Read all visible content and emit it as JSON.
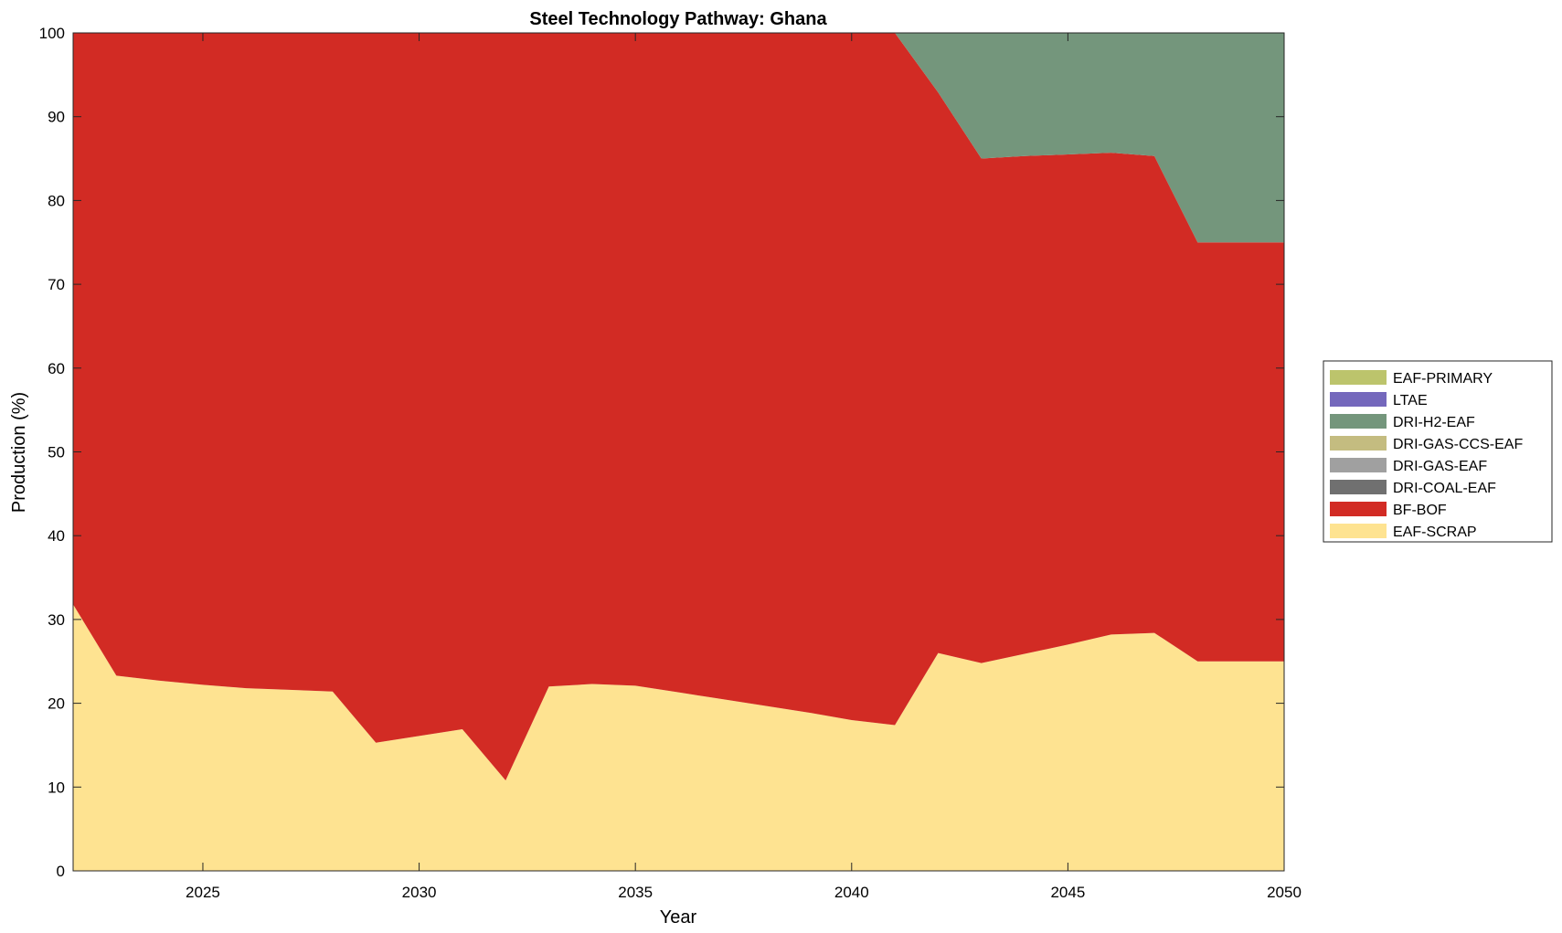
{
  "chart_data": {
    "type": "area",
    "stacked": true,
    "title": "Steel Technology Pathway: Ghana",
    "xlabel": "Year",
    "ylabel": "Production (%)",
    "xlim": [
      2022,
      2050
    ],
    "ylim": [
      0,
      100
    ],
    "xticks": [
      2025,
      2030,
      2035,
      2040,
      2045,
      2050
    ],
    "yticks": [
      0,
      10,
      20,
      30,
      40,
      50,
      60,
      70,
      80,
      90,
      100
    ],
    "grid": false,
    "legend_position": "right",
    "x": [
      2022,
      2023,
      2024,
      2025,
      2026,
      2027,
      2028,
      2029,
      2030,
      2031,
      2032,
      2033,
      2034,
      2035,
      2036,
      2037,
      2038,
      2039,
      2040,
      2041,
      2042,
      2043,
      2044,
      2045,
      2046,
      2047,
      2048,
      2049,
      2050
    ],
    "series": [
      {
        "name": "EAF-SCRAP",
        "color": "#FEE391",
        "values": [
          31.8,
          23.3,
          22.7,
          22.2,
          21.8,
          21.6,
          21.4,
          15.3,
          16.1,
          16.9,
          10.8,
          22.0,
          22.3,
          22.1,
          21.3,
          20.5,
          19.7,
          18.9,
          18.0,
          17.4,
          26.0,
          24.8,
          25.9,
          27.0,
          28.2,
          28.4,
          25.0,
          25.0,
          25.0
        ]
      },
      {
        "name": "BF-BOF",
        "color": "#D22B24",
        "values": [
          68.2,
          76.7,
          77.3,
          77.8,
          78.2,
          78.4,
          78.6,
          84.7,
          83.9,
          83.1,
          89.2,
          78.0,
          77.7,
          77.9,
          78.7,
          79.5,
          80.3,
          81.1,
          82.0,
          82.6,
          66.9,
          60.2,
          59.4,
          58.5,
          57.5,
          56.9,
          50.0,
          50.0,
          50.0
        ]
      },
      {
        "name": "DRI-COAL-EAF",
        "color": "#707070",
        "values": [
          0,
          0,
          0,
          0,
          0,
          0,
          0,
          0,
          0,
          0,
          0,
          0,
          0,
          0,
          0,
          0,
          0,
          0,
          0,
          0,
          0,
          0,
          0,
          0,
          0,
          0,
          0,
          0,
          0
        ]
      },
      {
        "name": "DRI-GAS-EAF",
        "color": "#A0A0A0",
        "values": [
          0,
          0,
          0,
          0,
          0,
          0,
          0,
          0,
          0,
          0,
          0,
          0,
          0,
          0,
          0,
          0,
          0,
          0,
          0,
          0,
          0,
          0,
          0,
          0,
          0,
          0,
          0,
          0,
          0
        ]
      },
      {
        "name": "DRI-GAS-CCS-EAF",
        "color": "#C4BC80",
        "values": [
          0,
          0,
          0,
          0,
          0,
          0,
          0,
          0,
          0,
          0,
          0,
          0,
          0,
          0,
          0,
          0,
          0,
          0,
          0,
          0,
          0,
          0,
          0,
          0,
          0,
          0,
          0,
          0,
          0
        ]
      },
      {
        "name": "DRI-H2-EAF",
        "color": "#74967C",
        "values": [
          0,
          0,
          0,
          0,
          0,
          0,
          0,
          0,
          0,
          0,
          0,
          0,
          0,
          0,
          0,
          0,
          0,
          0,
          0,
          0,
          7.1,
          15.0,
          14.7,
          14.5,
          14.3,
          14.7,
          25.0,
          25.0,
          25.0
        ]
      },
      {
        "name": "LTAE",
        "color": "#7468BC",
        "values": [
          0,
          0,
          0,
          0,
          0,
          0,
          0,
          0,
          0,
          0,
          0,
          0,
          0,
          0,
          0,
          0,
          0,
          0,
          0,
          0,
          0,
          0,
          0,
          0,
          0,
          0,
          0,
          0,
          0
        ]
      },
      {
        "name": "EAF-PRIMARY",
        "color": "#BCC46C",
        "values": [
          0,
          0,
          0,
          0,
          0,
          0,
          0,
          0,
          0,
          0,
          0,
          0,
          0,
          0,
          0,
          0,
          0,
          0,
          0,
          0,
          0,
          0,
          0,
          0,
          0,
          0,
          0,
          0,
          0
        ]
      }
    ]
  }
}
